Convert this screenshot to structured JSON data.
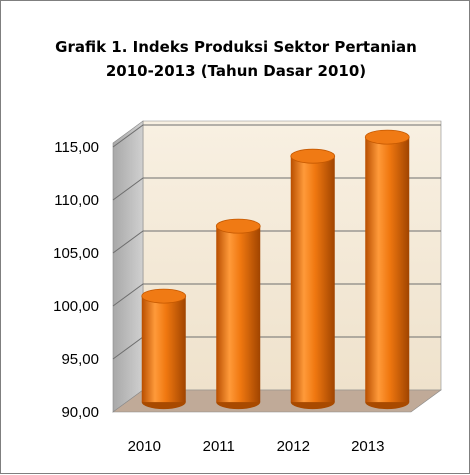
{
  "chart_data": {
    "type": "bar",
    "title_line1": "Grafik 1. Indeks Produksi Sektor Pertanian",
    "title_line2": "2010-2013 (Tahun Dasar 2010)",
    "categories": [
      "2010",
      "2011",
      "2012",
      "2013"
    ],
    "values": [
      100.0,
      106.6,
      113.2,
      115.0
    ],
    "ylim": [
      90,
      115
    ],
    "yticks": [
      "90,00",
      "95,00",
      "100,00",
      "105,00",
      "110,00",
      "115,00"
    ],
    "ytick_values": [
      90,
      95,
      100,
      105,
      110,
      115
    ],
    "grid": true,
    "bar_color": "#e8700a",
    "bar_highlight": "#ffb060",
    "bar_shadow": "#a84a00",
    "wall_color": "#f5ecdc",
    "floor_color": "#c0aa98"
  }
}
